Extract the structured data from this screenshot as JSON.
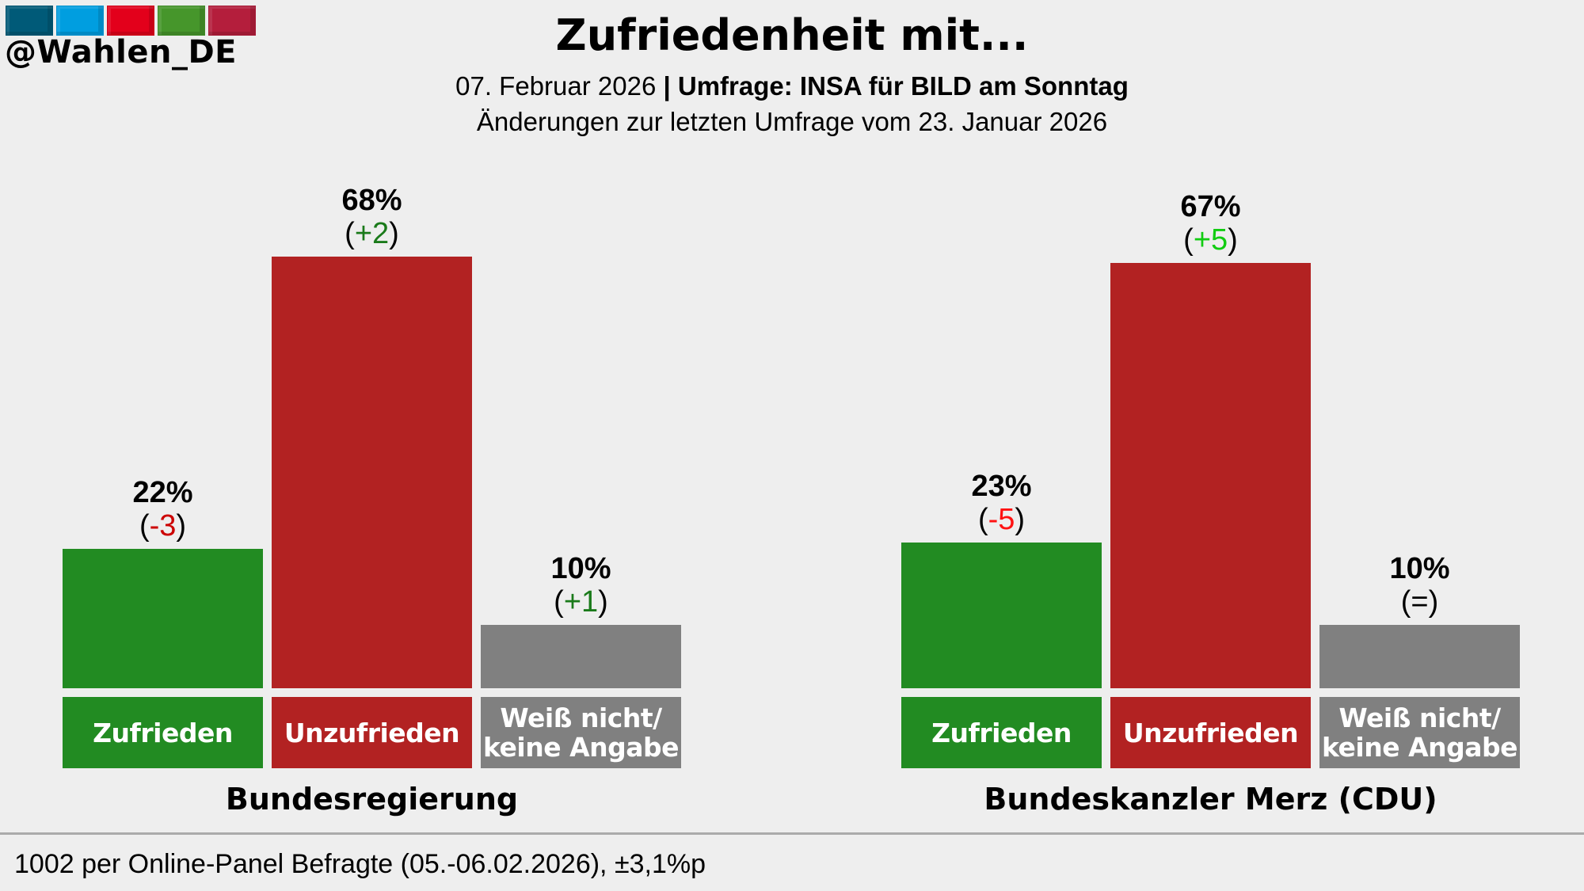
{
  "branding": {
    "handle": "@Wahlen_DE",
    "logo_colors": [
      "#005a78",
      "#009ee0",
      "#e3001b",
      "#46962b",
      "#b41e3c"
    ]
  },
  "header": {
    "title": "Zufriedenheit mit...",
    "date": "07. Februar 2026",
    "separator": "|",
    "poll_source": "Umfrage: INSA für BILD am Sonntag",
    "changes_note": "Änderungen zur letzten Umfrage vom 23. Januar 2026"
  },
  "footer": {
    "note": "1002 per Online-Panel Befragte (05.-06.02.2026), ±3,1%p"
  },
  "colors": {
    "background": "#eeeeee",
    "zufrieden": "#228b22",
    "unzufrieden": "#b22222",
    "weiss_nicht": "#808080",
    "change_positive_left": "#1a7a1a",
    "change_negative_left": "#cc0000",
    "change_positive_right": "#11cc11",
    "change_negative_right": "#ff1111",
    "change_neutral": "#000000"
  },
  "chart_data": {
    "type": "bar",
    "title": "Zufriedenheit mit...",
    "subtitle": "07. Februar 2026 | Umfrage: INSA für BILD am Sonntag",
    "unit": "%",
    "ylim": [
      0,
      100
    ],
    "grid": false,
    "categories": [
      "Zufrieden",
      "Unzufrieden",
      "Weiß nicht/\nkeine Angabe"
    ],
    "groups": [
      {
        "name": "Bundesregierung",
        "values": [
          22,
          68,
          10
        ],
        "value_labels": [
          "22%",
          "68%",
          "10%"
        ],
        "changes": [
          "-3",
          "+2",
          "+1"
        ],
        "change_colors": [
          "#cc0000",
          "#1a7a1a",
          "#1a7a1a"
        ]
      },
      {
        "name": "Bundeskanzler Merz (CDU)",
        "values": [
          23,
          67,
          10
        ],
        "value_labels": [
          "23%",
          "67%",
          "10%"
        ],
        "changes": [
          "-5",
          "+5",
          "="
        ],
        "change_colors": [
          "#ff1111",
          "#11cc11",
          "#000000"
        ]
      }
    ],
    "bar_colors": [
      "#228b22",
      "#b22222",
      "#808080"
    ]
  }
}
